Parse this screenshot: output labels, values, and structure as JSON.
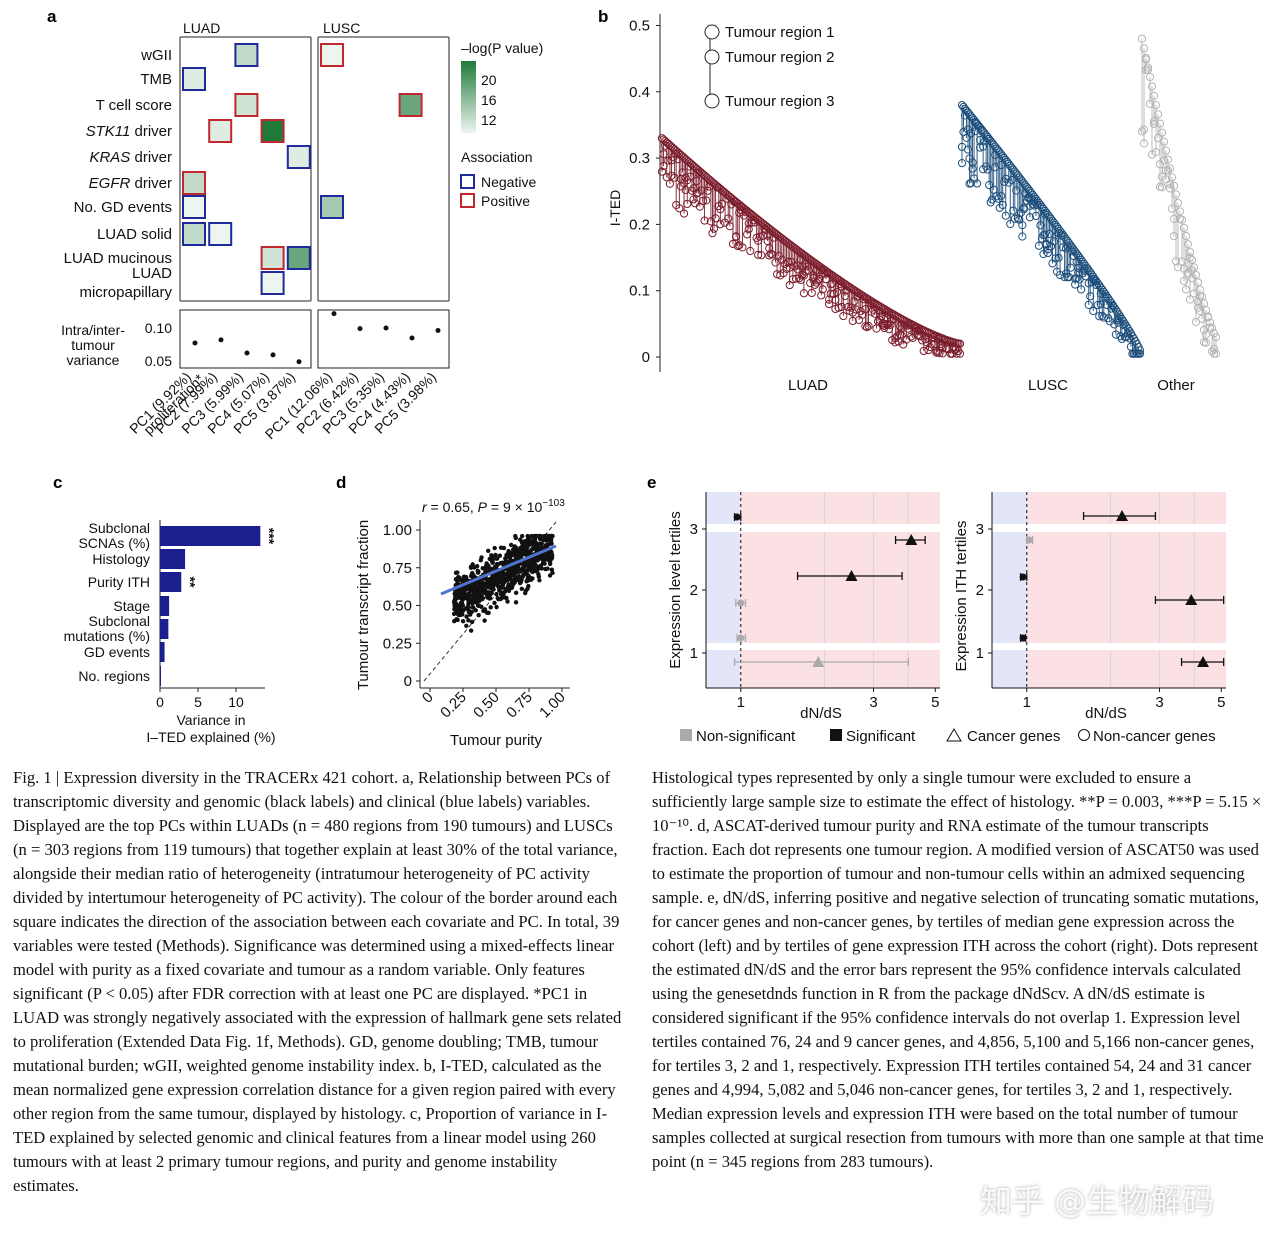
{
  "colors": {
    "neg": "#1f2a9c",
    "pos": "#c0282d",
    "luad": "#7b1d2c",
    "lusc": "#1e4f7c",
    "other": "#b5b5b5",
    "bar": "#1a1f8f",
    "pinkbg": "#fbe0e4",
    "bluebg": "#e3e6f8",
    "fit": "#4f73d0"
  },
  "panelA": {
    "label": "a",
    "col_luad": "LUAD",
    "col_lusc": "LUSC",
    "rows": [
      {
        "label": "wGII",
        "type": "genomic"
      },
      {
        "label": "TMB",
        "type": "genomic"
      },
      {
        "label": "T cell score",
        "type": "genomic"
      },
      {
        "label": "STK11 driver",
        "type": "genomic",
        "italic": "STK11",
        "rest": " driver"
      },
      {
        "label": "KRAS driver",
        "type": "genomic",
        "italic": "KRAS",
        "rest": " driver"
      },
      {
        "label": "EGFR driver",
        "type": "genomic",
        "italic": "EGFR",
        "rest": " driver"
      },
      {
        "label": "No. GD events",
        "type": "genomic"
      },
      {
        "label": "LUAD solid",
        "type": "clinical"
      },
      {
        "label": "LUAD mucinous",
        "type": "clinical"
      },
      {
        "label": "LUAD\nmicropapillary",
        "type": "clinical",
        "line1": "LUAD",
        "line2": "micropapillary"
      }
    ],
    "squares": [
      {
        "panel": "luad",
        "row": 0,
        "col": 2,
        "assoc": "neg",
        "p": 13
      },
      {
        "panel": "luad",
        "row": 1,
        "col": 0,
        "assoc": "neg",
        "p": 11
      },
      {
        "panel": "luad",
        "row": 2,
        "col": 2,
        "assoc": "pos",
        "p": 12
      },
      {
        "panel": "luad",
        "row": 3,
        "col": 1,
        "assoc": "pos",
        "p": 11
      },
      {
        "panel": "luad",
        "row": 3,
        "col": 3,
        "assoc": "pos",
        "p": 24
      },
      {
        "panel": "luad",
        "row": 4,
        "col": 4,
        "assoc": "neg",
        "p": 11
      },
      {
        "panel": "luad",
        "row": 5,
        "col": 0,
        "assoc": "pos",
        "p": 13
      },
      {
        "panel": "luad",
        "row": 6,
        "col": 0,
        "assoc": "neg",
        "p": 10
      },
      {
        "panel": "luad",
        "row": 7,
        "col": 0,
        "assoc": "neg",
        "p": 13
      },
      {
        "panel": "luad",
        "row": 7,
        "col": 1,
        "assoc": "neg",
        "p": 10
      },
      {
        "panel": "luad",
        "row": 8,
        "col": 3,
        "assoc": "pos",
        "p": 12
      },
      {
        "panel": "luad",
        "row": 8,
        "col": 4,
        "assoc": "neg",
        "p": 19
      },
      {
        "panel": "luad",
        "row": 9,
        "col": 3,
        "assoc": "neg",
        "p": 10
      },
      {
        "panel": "lusc",
        "row": 0,
        "col": 0,
        "assoc": "pos",
        "p": 10
      },
      {
        "panel": "lusc",
        "row": 2,
        "col": 3,
        "assoc": "pos",
        "p": 19
      },
      {
        "panel": "lusc",
        "row": 6,
        "col": 0,
        "assoc": "neg",
        "p": 15
      }
    ],
    "legend_title": "–log(P value)",
    "legend_ticks": [
      "20",
      "16",
      "12"
    ],
    "assoc_title": "Association",
    "assoc_neg": "Negative",
    "assoc_pos": "Positive",
    "variance_label": [
      "Intra/inter-",
      "tumour",
      "variance"
    ],
    "variance_ticks": [
      "0.10",
      "0.05"
    ],
    "variance_luad": [
      0.077,
      0.082,
      0.061,
      0.058,
      0.047
    ],
    "variance_lusc": [
      0.124,
      0.1,
      0.101,
      0.085,
      0.097
    ],
    "pcs_luad": [
      "PC1 (9.92%)",
      "PC2 (7.99%)",
      "PC3 (5.99%)",
      "PC4 (5.07%)",
      "PC5 (3.87%)"
    ],
    "pc1_sub": "proliferation*",
    "pcs_lusc": [
      "PC1 (12.06%)",
      "PC2 (6.42%)",
      "PC3 (5.35%)",
      "PC4 (4.43%)",
      "PC5 (3.98%)"
    ]
  },
  "panelB": {
    "label": "b",
    "ylabel": "I-TED",
    "yticks": [
      "0",
      "0.1",
      "0.2",
      "0.3",
      "0.4",
      "0.5"
    ],
    "groups": [
      "LUAD",
      "LUSC",
      "Other"
    ],
    "legend": [
      "Tumour region 1",
      "Tumour region 2",
      "Tumour region 3"
    ]
  },
  "panelC": {
    "label": "c",
    "chart_data": {
      "type": "bar",
      "categories": [
        "Subclonal SCNAs (%)",
        "Histology",
        "Purity ITH",
        "Stage",
        "Subclonal mutations (%)",
        "GD events",
        "No. regions"
      ],
      "values": [
        13.2,
        3.3,
        2.8,
        1.2,
        1.1,
        0.6,
        0.1
      ],
      "significance": [
        "***",
        "",
        "**",
        "",
        "",
        "",
        ""
      ],
      "xlabel": "Variance in I–TED explained (%)",
      "xticks": [
        "0",
        "5",
        "10"
      ]
    },
    "cat_lines": [
      [
        "Subclonal",
        "SCNAs (%)"
      ],
      [
        "Histology"
      ],
      [
        "Purity ITH"
      ],
      [
        "Stage"
      ],
      [
        "Subclonal",
        "mutations (%)"
      ],
      [
        "GD events"
      ],
      [
        "No. regions"
      ]
    ],
    "xlabel_lines": [
      "Variance in",
      "I–TED explained (%)"
    ]
  },
  "panelD": {
    "label": "d",
    "stat": "r = 0.65, P = 9 × 10⁻¹⁰³",
    "stat_r": "r",
    "stat_mid": " = 0.65, ",
    "stat_p": "P",
    "stat_eq": " = 9 × 10",
    "stat_exp": "−103",
    "xlabel": "Tumour purity",
    "ylabel": "Tumour transcript fraction",
    "xticks": [
      "0",
      "0.25",
      "0.50",
      "0.75",
      "1.00"
    ],
    "yticks": [
      "0",
      "0.25",
      "0.50",
      "0.75",
      "1.00"
    ]
  },
  "panelE": {
    "label": "e",
    "xlabel": "dN/dS",
    "left_ylabel": "Expression level tertiles",
    "right_ylabel": "Expression ITH tertiles",
    "xticks": [
      "1",
      "3",
      "5"
    ],
    "yticks": [
      "1",
      "2",
      "3"
    ],
    "left": [
      {
        "t": 3,
        "kind": "noncancer",
        "sig": true,
        "est": 0.97,
        "lo": 0.95,
        "hi": 1.0
      },
      {
        "t": 3,
        "kind": "cancer",
        "sig": true,
        "est": 4.1,
        "lo": 3.6,
        "hi": 4.6
      },
      {
        "t": 2,
        "kind": "cancer",
        "sig": true,
        "est": 2.5,
        "lo": 1.6,
        "hi": 3.8
      },
      {
        "t": 2,
        "kind": "noncancer",
        "sig": false,
        "est": 1.0,
        "lo": 0.96,
        "hi": 1.04
      },
      {
        "t": 1,
        "kind": "noncancer",
        "sig": false,
        "est": 1.0,
        "lo": 0.97,
        "hi": 1.04
      },
      {
        "t": 1,
        "kind": "cancer",
        "sig": false,
        "est": 1.9,
        "lo": 0.95,
        "hi": 4.0
      }
    ],
    "right": [
      {
        "t": 3,
        "kind": "cancer",
        "sig": true,
        "est": 2.2,
        "lo": 1.6,
        "hi": 2.9
      },
      {
        "t": 3,
        "kind": "noncancer",
        "sig": false,
        "est": 1.02,
        "lo": 1.0,
        "hi": 1.05
      },
      {
        "t": 2,
        "kind": "noncancer",
        "sig": true,
        "est": 0.97,
        "lo": 0.95,
        "hi": 1.0
      },
      {
        "t": 2,
        "kind": "cancer",
        "sig": true,
        "est": 3.9,
        "lo": 2.9,
        "hi": 5.1
      },
      {
        "t": 1,
        "kind": "noncancer",
        "sig": true,
        "est": 0.97,
        "lo": 0.95,
        "hi": 0.99
      },
      {
        "t": 1,
        "kind": "cancer",
        "sig": true,
        "est": 4.3,
        "lo": 3.6,
        "hi": 5.1
      }
    ],
    "legend": [
      "Non-significant",
      "Significant",
      "Cancer genes",
      "Non-cancer genes"
    ]
  },
  "caption": {
    "left": "Fig. 1 | Expression diversity in the TRACERx 421 cohort. a, Relationship between PCs of transcriptomic diversity and genomic (black labels) and clinical (blue labels) variables. Displayed are the top PCs within LUADs (n = 480 regions from 190 tumours) and LUSCs (n = 303 regions from 119 tumours) that together explain at least 30% of the total variance, alongside their median ratio of heterogeneity (intratumour heterogeneity of PC activity divided by intertumour heterogeneity of PC activity). The colour of the border around each square indicates the direction of the association between each covariate and PC. In total, 39 variables were tested (Methods). Significance was determined using a mixed-effects linear model with purity as a fixed covariate and tumour as a random variable. Only features significant (P < 0.05) after FDR correction with at least one PC are displayed. *PC1 in LUAD was strongly negatively associated with the expression of hallmark gene sets related to proliferation (Extended Data Fig. 1f, Methods). GD, genome doubling; TMB, tumour mutational burden; wGII, weighted genome instability index. b, I-TED, calculated as the mean normalized gene expression correlation distance for a given region paired with every other region from the same tumour, displayed by histology. c, Proportion of variance in I-TED explained by selected genomic and clinical features from a linear model using 260 tumours with at least 2 primary tumour regions, and purity and genome instability estimates.",
    "right": "Histological types represented by only a single tumour were excluded to ensure a sufficiently large sample size to estimate the effect of histology. **P = 0.003, ***P = 5.15 × 10⁻¹⁰. d, ASCAT-derived tumour purity and RNA estimate of the tumour transcripts fraction. Each dot represents one tumour region. A modified version of ASCAT50 was used to estimate the proportion of tumour and non-tumour cells within an admixed sequencing sample. e, dN/dS, inferring positive and negative selection of truncating somatic mutations, for cancer genes and non-cancer genes, by tertiles of median gene expression across the cohort (left) and by tertiles of gene expression ITH across the cohort (right). Dots represent the estimated dN/dS and the error bars represent the 95% confidence intervals calculated using the genesetdnds function in R from the package dNdScv. A dN/dS estimate is considered significant if the 95% confidence intervals do not overlap 1. Expression level tertiles contained 76, 24 and 9 cancer genes, and 4,856, 5,100 and 5,166 non-cancer genes, for tertiles 3, 2 and 1, respectively. Expression ITH tertiles contained 54, 24 and 31 cancer genes and 4,994, 5,082 and 5,046 non-cancer genes, for tertiles 3, 2 and 1, respectively. Median expression levels and expression ITH were based on the total number of tumour samples collected at surgical resection from tumours with more than one sample at that time point (n = 345 regions from 283 tumours).",
    "watermark": "知乎 @生物解码"
  }
}
